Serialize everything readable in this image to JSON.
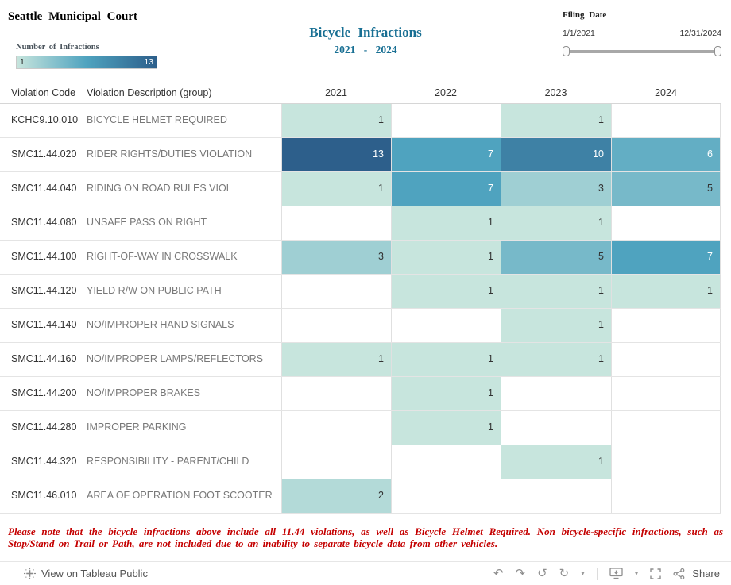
{
  "colors": {
    "title_accent": "#186f93",
    "footnote": "#c40000",
    "description_text": "#787878"
  },
  "header": {
    "org": "Seattle Municipal Court",
    "title_line1": "Bicycle Infractions",
    "title_line2": "2021 -  2024",
    "legend": {
      "label": "Number of Infractions",
      "min": "1",
      "max": "13"
    },
    "filter": {
      "label": "Filing Date",
      "start": "1/1/2021",
      "end": "12/31/2024"
    }
  },
  "table": {
    "columns": [
      "Violation Code",
      "Violation Description (group)",
      "2021",
      "2022",
      "2023",
      "2024"
    ],
    "rows": [
      {
        "code": "KCHC9.10.010",
        "desc": "BICYCLE HELMET REQUIRED",
        "values": [
          1,
          null,
          1,
          null
        ]
      },
      {
        "code": "SMC11.44.020",
        "desc": "RIDER RIGHTS/DUTIES VIOLATION",
        "values": [
          13,
          7,
          10,
          6
        ]
      },
      {
        "code": "SMC11.44.040",
        "desc": "RIDING ON ROAD RULES VIOL",
        "values": [
          1,
          7,
          3,
          5
        ]
      },
      {
        "code": "SMC11.44.080",
        "desc": "UNSAFE PASS ON RIGHT",
        "values": [
          null,
          1,
          1,
          null
        ]
      },
      {
        "code": "SMC11.44.100",
        "desc": "RIGHT-OF-WAY IN CROSSWALK",
        "values": [
          3,
          1,
          5,
          7
        ]
      },
      {
        "code": "SMC11.44.120",
        "desc": "YIELD R/W ON PUBLIC PATH",
        "values": [
          null,
          1,
          1,
          1
        ]
      },
      {
        "code": "SMC11.44.140",
        "desc": "NO/IMPROPER HAND SIGNALS",
        "values": [
          null,
          null,
          1,
          null
        ]
      },
      {
        "code": "SMC11.44.160",
        "desc": "NO/IMPROPER LAMPS/REFLECTORS",
        "values": [
          1,
          1,
          1,
          null
        ]
      },
      {
        "code": "SMC11.44.200",
        "desc": "NO/IMPROPER BRAKES",
        "values": [
          null,
          1,
          null,
          null
        ]
      },
      {
        "code": "SMC11.44.280",
        "desc": "IMPROPER PARKING",
        "values": [
          null,
          1,
          null,
          null
        ]
      },
      {
        "code": "SMC11.44.320",
        "desc": "RESPONSIBILITY - PARENT/CHILD",
        "values": [
          null,
          null,
          1,
          null
        ]
      },
      {
        "code": "SMC11.46.010",
        "desc": "AREA OF OPERATION FOOT SCOOTER",
        "values": [
          2,
          null,
          null,
          null
        ]
      }
    ]
  },
  "footnote": "Please note that the bicycle infractions above include all 11.44 violations, as well as Bicycle Helmet Required.  Non bicycle-specific infractions, such as Stop/Stand on Trail or Path, are not included due to an inability to separate bicycle data from other vehicles.",
  "toolbar": {
    "view_label": "View on Tableau Public",
    "share_label": "Share"
  },
  "chart_data": {
    "type": "heatmap",
    "title": "Bicycle Infractions 2021 - 2024",
    "x_categories": [
      "2021",
      "2022",
      "2023",
      "2024"
    ],
    "y_categories": [
      "KCHC9.10.010",
      "SMC11.44.020",
      "SMC11.44.040",
      "SMC11.44.080",
      "SMC11.44.100",
      "SMC11.44.120",
      "SMC11.44.140",
      "SMC11.44.160",
      "SMC11.44.200",
      "SMC11.44.280",
      "SMC11.44.320",
      "SMC11.46.010"
    ],
    "y_descriptions": [
      "BICYCLE HELMET REQUIRED",
      "RIDER RIGHTS/DUTIES VIOLATION",
      "RIDING ON ROAD RULES VIOL",
      "UNSAFE PASS ON RIGHT",
      "RIGHT-OF-WAY IN CROSSWALK",
      "YIELD R/W ON PUBLIC PATH",
      "NO/IMPROPER HAND SIGNALS",
      "NO/IMPROPER LAMPS/REFLECTORS",
      "NO/IMPROPER BRAKES",
      "IMPROPER PARKING",
      "RESPONSIBILITY - PARENT/CHILD",
      "AREA OF OPERATION FOOT SCOOTER"
    ],
    "values": [
      [
        1,
        null,
        1,
        null
      ],
      [
        13,
        7,
        10,
        6
      ],
      [
        1,
        7,
        3,
        5
      ],
      [
        null,
        1,
        1,
        null
      ],
      [
        3,
        1,
        5,
        7
      ],
      [
        null,
        1,
        1,
        1
      ],
      [
        null,
        null,
        1,
        null
      ],
      [
        1,
        1,
        1,
        null
      ],
      [
        null,
        1,
        null,
        null
      ],
      [
        null,
        1,
        null,
        null
      ],
      [
        null,
        null,
        1,
        null
      ],
      [
        2,
        null,
        null,
        null
      ]
    ],
    "legend": {
      "label": "Number of Infractions",
      "min": 1,
      "max": 13,
      "position": "top-left"
    },
    "color_scale": {
      "min": 1,
      "max": 13,
      "min_color": "#c7e5dd",
      "mid_color": "#4fa3bf",
      "max_color": "#2d5f8b"
    }
  }
}
